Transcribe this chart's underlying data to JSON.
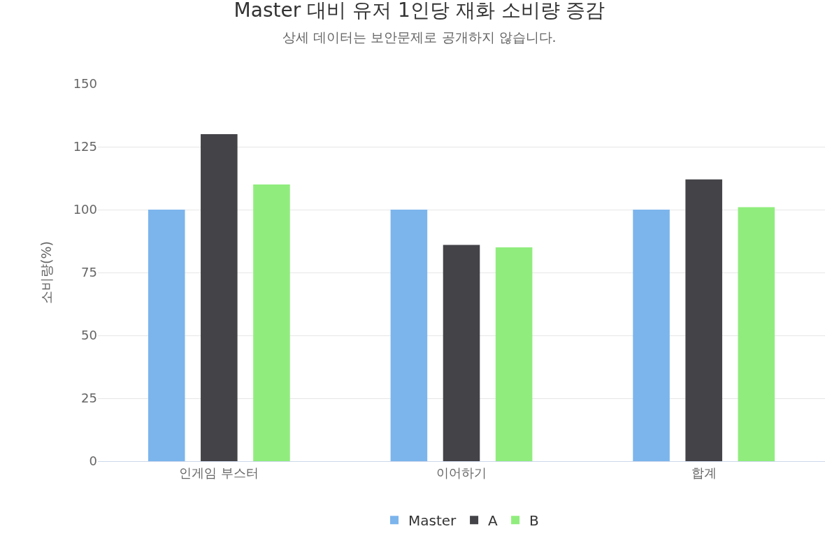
{
  "chart_data": {
    "type": "bar",
    "title": "Master 대비 유저 1인당 재화 소비량 증감",
    "subtitle": "상세 데이터는 보안문제로 공개하지 않습니다.",
    "ylabel": "소비량(%)",
    "categories": [
      "인게임 부스터",
      "이어하기",
      "합계"
    ],
    "series": [
      {
        "name": "Master",
        "color": "#7cb5ec",
        "values": [
          100,
          100,
          100
        ]
      },
      {
        "name": "A",
        "color": "#434348",
        "values": [
          130,
          86,
          112
        ]
      },
      {
        "name": "B",
        "color": "#90ed7d",
        "values": [
          110,
          85,
          101
        ]
      }
    ],
    "ylim": [
      0,
      150
    ],
    "yticks": [
      0,
      25,
      50,
      75,
      100,
      125,
      150
    ],
    "grid": "y",
    "legend": "bottom"
  }
}
